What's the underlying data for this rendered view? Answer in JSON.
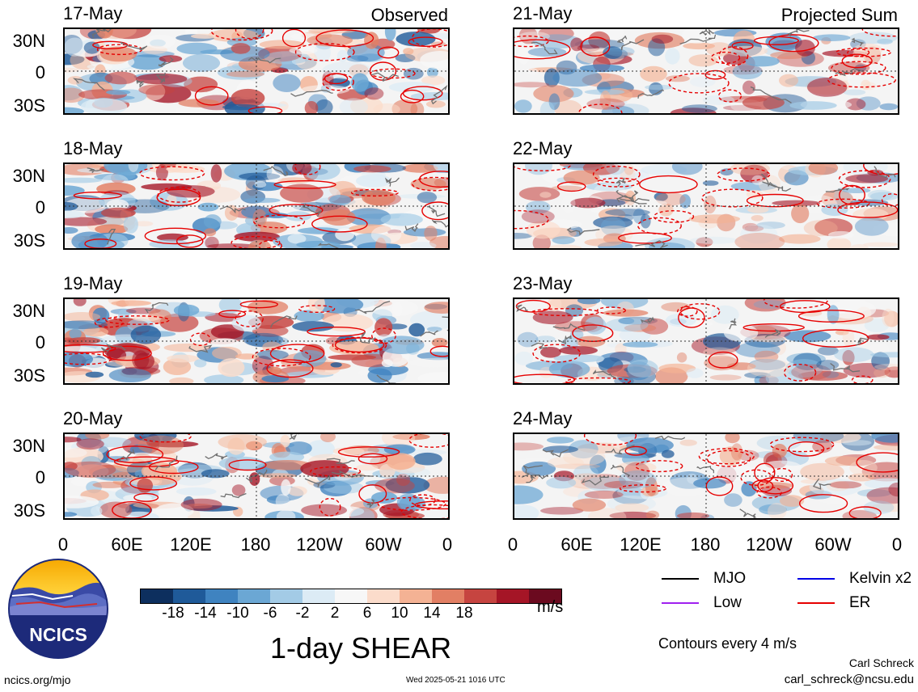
{
  "panels_left": [
    {
      "date": "17-May",
      "tag": "Observed"
    },
    {
      "date": "18-May",
      "tag": ""
    },
    {
      "date": "19-May",
      "tag": ""
    },
    {
      "date": "20-May",
      "tag": ""
    }
  ],
  "panels_right": [
    {
      "date": "21-May",
      "tag": "Projected Sum"
    },
    {
      "date": "22-May",
      "tag": ""
    },
    {
      "date": "23-May",
      "tag": ""
    },
    {
      "date": "24-May",
      "tag": ""
    }
  ],
  "lat_labels": [
    "30N",
    "0",
    "30S"
  ],
  "lon_labels": [
    "0",
    "60E",
    "120E",
    "180",
    "120W",
    "60W",
    "0"
  ],
  "colorbar": {
    "colors": [
      "#0d2f5e",
      "#1f5a99",
      "#3f83c0",
      "#6ba7d4",
      "#a3cbe6",
      "#dcebf5",
      "#f7f7f7",
      "#fbdccb",
      "#f4b294",
      "#e27f64",
      "#c64440",
      "#a51526",
      "#6b0a1f"
    ],
    "ticks": [
      "-18",
      "-14",
      "-10",
      "-6",
      "-2",
      "2",
      "6",
      "10",
      "14",
      "18"
    ],
    "units": "m/s"
  },
  "title": "1-day SHEAR",
  "legend": [
    {
      "label": "MJO",
      "color": "#000000"
    },
    {
      "label": "Kelvin x2",
      "color": "#0000e6"
    },
    {
      "label": "Low",
      "color": "#a020f0"
    },
    {
      "label": "ER",
      "color": "#e60000"
    }
  ],
  "contour_note": "Contours every 4 m/s",
  "credit_name": "Carl Schreck",
  "credit_email": "carl_schreck@ncsu.edu",
  "url": "ncics.org/mjo",
  "timestamp": "Wed 2025-05-21 1016 UTC",
  "logo_text": "NCICS"
}
